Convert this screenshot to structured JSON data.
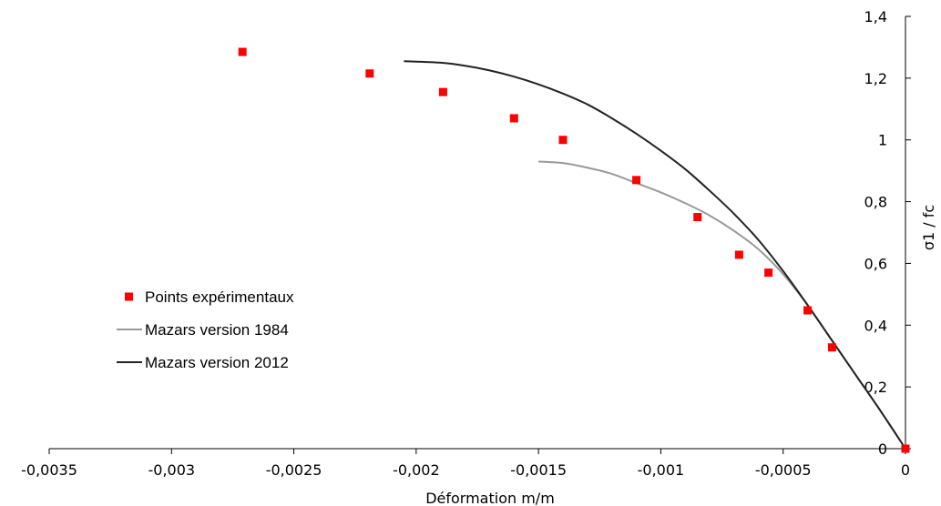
{
  "chart_data": {
    "type": "scatter",
    "title": "",
    "xlabel": "Déformation m/m",
    "ylabel": "σ1 / fc",
    "xlim": [
      -0.0035,
      0
    ],
    "ylim": [
      0,
      1.4
    ],
    "x_ticks": [
      -0.0035,
      -0.003,
      -0.0025,
      -0.002,
      -0.0015,
      -0.001,
      -0.0005,
      0
    ],
    "x_tick_labels": [
      "-0,0035",
      "-0,003",
      "-0,0025",
      "-0,002",
      "-0,0015",
      "-0,001",
      "-0,0005",
      "0"
    ],
    "y_ticks": [
      0,
      0.2,
      0.4,
      0.6,
      0.8,
      1,
      1.2,
      1.4
    ],
    "y_tick_labels": [
      "0",
      "0,2",
      "0,4",
      "0,6",
      "0,8",
      "1",
      "1,2",
      "1,4"
    ],
    "y_axis_side": "right",
    "grid": false,
    "legend_position": "left-middle",
    "series": [
      {
        "name": "Points expérimentaux",
        "kind": "scatter",
        "marker": "square",
        "color": "#ff0000",
        "x": [
          -0.00271,
          -0.00219,
          -0.00189,
          -0.0016,
          -0.0014,
          -0.0011,
          -0.00085,
          -0.00068,
          -0.00056,
          -0.0004,
          -0.0003,
          0
        ],
        "y": [
          1.285,
          1.215,
          1.155,
          1.07,
          1.0,
          0.87,
          0.75,
          0.628,
          0.57,
          0.448,
          0.328,
          0
        ]
      },
      {
        "name": "Mazars version 1984",
        "kind": "line",
        "color": "#999999",
        "x": [
          -0.0015,
          -0.0014,
          -0.0013,
          -0.0012,
          -0.0011,
          -0.001,
          -0.0009,
          -0.0008,
          -0.0007,
          -0.0006,
          -0.0005,
          -0.0004,
          -0.0003,
          -0.0002,
          -0.0001,
          0
        ],
        "y": [
          0.93,
          0.925,
          0.91,
          0.89,
          0.86,
          0.83,
          0.795,
          0.755,
          0.705,
          0.645,
          0.565,
          0.465,
          0.35,
          0.235,
          0.12,
          0
        ]
      },
      {
        "name": "Mazars version 2012",
        "kind": "line",
        "color": "#222222",
        "x": [
          -0.00205,
          -0.0019,
          -0.0018,
          -0.0017,
          -0.0016,
          -0.0015,
          -0.0014,
          -0.0013,
          -0.0012,
          -0.0011,
          -0.001,
          -0.0009,
          -0.0008,
          -0.0007,
          -0.0006,
          -0.0005,
          -0.0004,
          -0.0003,
          -0.0002,
          -0.0001,
          0
        ],
        "y": [
          1.255,
          1.25,
          1.24,
          1.225,
          1.205,
          1.18,
          1.15,
          1.115,
          1.07,
          1.02,
          0.965,
          0.905,
          0.835,
          0.76,
          0.675,
          0.575,
          0.465,
          0.35,
          0.235,
          0.12,
          0
        ]
      }
    ]
  }
}
